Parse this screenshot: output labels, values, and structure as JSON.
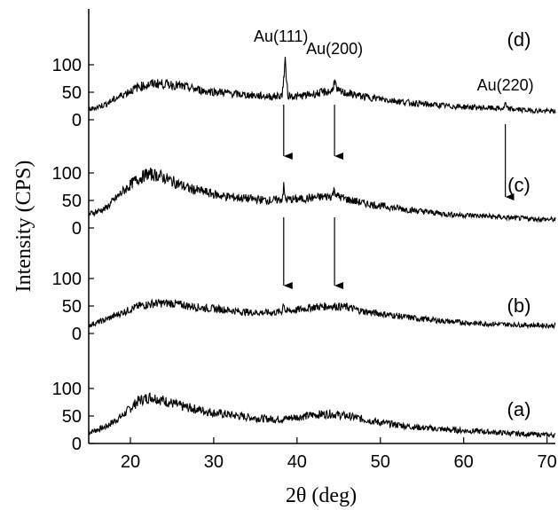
{
  "chart_data": {
    "type": "line",
    "title": "",
    "xlabel": "2θ (deg)",
    "ylabel": "Intensity (CPS)",
    "xlim": [
      15,
      71
    ],
    "x_ticks": [
      20,
      30,
      40,
      50,
      60,
      70
    ],
    "y_ticks": [
      0,
      50,
      100
    ],
    "y_per_panel_range": [
      0,
      130
    ],
    "grid": false,
    "series": [
      {
        "label": "(a)",
        "points": [
          [
            15,
            20
          ],
          [
            17,
            30
          ],
          [
            19,
            50
          ],
          [
            21,
            78
          ],
          [
            22.5,
            85
          ],
          [
            24,
            78
          ],
          [
            26,
            68
          ],
          [
            28,
            62
          ],
          [
            30,
            56
          ],
          [
            32,
            52
          ],
          [
            34,
            48
          ],
          [
            36,
            45
          ],
          [
            38,
            44
          ],
          [
            40,
            48
          ],
          [
            42,
            52
          ],
          [
            44,
            54
          ],
          [
            46,
            50
          ],
          [
            48,
            44
          ],
          [
            50,
            38
          ],
          [
            54,
            30
          ],
          [
            58,
            25
          ],
          [
            62,
            22
          ],
          [
            66,
            18
          ],
          [
            71,
            15
          ]
        ],
        "peaks": []
      },
      {
        "label": "(b)",
        "points": [
          [
            15,
            15
          ],
          [
            17,
            25
          ],
          [
            19,
            38
          ],
          [
            21,
            50
          ],
          [
            23,
            55
          ],
          [
            25,
            55
          ],
          [
            27,
            50
          ],
          [
            29,
            46
          ],
          [
            31,
            44
          ],
          [
            33,
            40
          ],
          [
            35,
            38
          ],
          [
            37,
            38
          ],
          [
            38.2,
            40
          ],
          [
            38.4,
            58
          ],
          [
            38.6,
            40
          ],
          [
            40,
            43
          ],
          [
            42,
            48
          ],
          [
            44,
            50
          ],
          [
            46,
            48
          ],
          [
            48,
            40
          ],
          [
            50,
            36
          ],
          [
            54,
            28
          ],
          [
            58,
            22
          ],
          [
            62,
            18
          ],
          [
            66,
            16
          ],
          [
            71,
            14
          ]
        ],
        "peaks": [
          38.4
        ]
      },
      {
        "label": "(c)",
        "points": [
          [
            15,
            25
          ],
          [
            17,
            35
          ],
          [
            19,
            65
          ],
          [
            20.5,
            85
          ],
          [
            22,
            98
          ],
          [
            23.5,
            95
          ],
          [
            25,
            85
          ],
          [
            27,
            72
          ],
          [
            29,
            65
          ],
          [
            31,
            58
          ],
          [
            33,
            55
          ],
          [
            35,
            52
          ],
          [
            37,
            50
          ],
          [
            38.2,
            52
          ],
          [
            38.4,
            75
          ],
          [
            38.6,
            52
          ],
          [
            40,
            52
          ],
          [
            42,
            55
          ],
          [
            44.2,
            58
          ],
          [
            44.5,
            70
          ],
          [
            44.8,
            58
          ],
          [
            46,
            52
          ],
          [
            48,
            45
          ],
          [
            50,
            40
          ],
          [
            54,
            32
          ],
          [
            58,
            25
          ],
          [
            62,
            22
          ],
          [
            66,
            18
          ],
          [
            71,
            15
          ]
        ],
        "peaks": [
          38.4,
          44.5
        ]
      },
      {
        "label": "(d)",
        "points": [
          [
            15,
            18
          ],
          [
            17,
            28
          ],
          [
            19,
            45
          ],
          [
            21,
            60
          ],
          [
            23,
            66
          ],
          [
            25,
            64
          ],
          [
            27,
            58
          ],
          [
            29,
            52
          ],
          [
            31,
            50
          ],
          [
            33,
            46
          ],
          [
            35,
            44
          ],
          [
            37,
            42
          ],
          [
            38.2,
            44
          ],
          [
            38.6,
            105
          ],
          [
            38.9,
            44
          ],
          [
            40,
            42
          ],
          [
            42,
            47
          ],
          [
            44.2,
            52
          ],
          [
            44.5,
            72
          ],
          [
            44.8,
            52
          ],
          [
            46,
            48
          ],
          [
            48,
            42
          ],
          [
            50,
            38
          ],
          [
            54,
            30
          ],
          [
            58,
            25
          ],
          [
            62,
            22
          ],
          [
            64.8,
            20
          ],
          [
            65,
            30
          ],
          [
            65.2,
            20
          ],
          [
            68,
            17
          ],
          [
            71,
            15
          ]
        ],
        "peaks": [
          38.6,
          44.5,
          65
        ]
      }
    ],
    "peak_annotations": [
      {
        "text": "Au(111)",
        "x": 38.5
      },
      {
        "text": "Au(200)",
        "x": 44.5
      },
      {
        "text": "Au(220)",
        "x": 65
      }
    ]
  }
}
